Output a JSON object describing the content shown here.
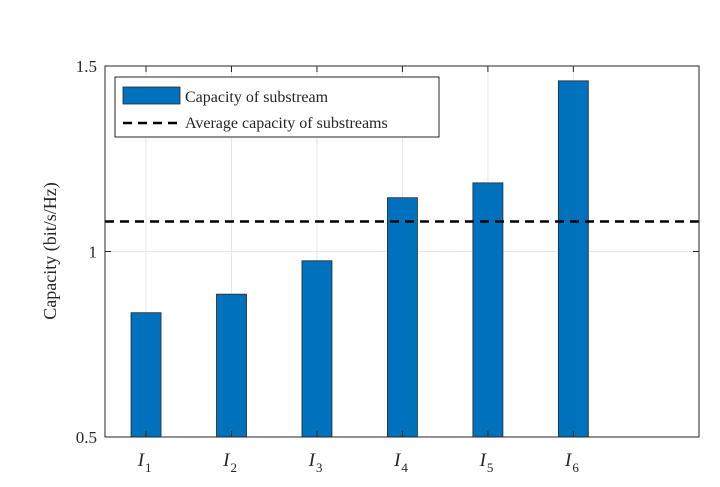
{
  "chart_data": {
    "type": "bar",
    "title": "",
    "xlabel": "",
    "ylabel": "Capacity (bit/s/Hz)",
    "ylim": [
      0.5,
      1.5
    ],
    "yticks": [
      "0.5",
      "1",
      "1.5"
    ],
    "grid": true,
    "legend_position": "top-left",
    "categories": [
      {
        "main": "I",
        "sub": "1"
      },
      {
        "main": "I",
        "sub": "2"
      },
      {
        "main": "I",
        "sub": "3"
      },
      {
        "main": "I",
        "sub": "4"
      },
      {
        "main": "I",
        "sub": "5"
      },
      {
        "main": "I",
        "sub": "6"
      }
    ],
    "series": [
      {
        "name": "Capacity of substream",
        "values": [
          0.835,
          0.885,
          0.975,
          1.145,
          1.185,
          1.46
        ],
        "color": "#0072BD"
      }
    ],
    "reference_line": {
      "name": "Average capacity of substreams",
      "value": 1.081,
      "color": "#000000",
      "style": "dashed"
    }
  }
}
